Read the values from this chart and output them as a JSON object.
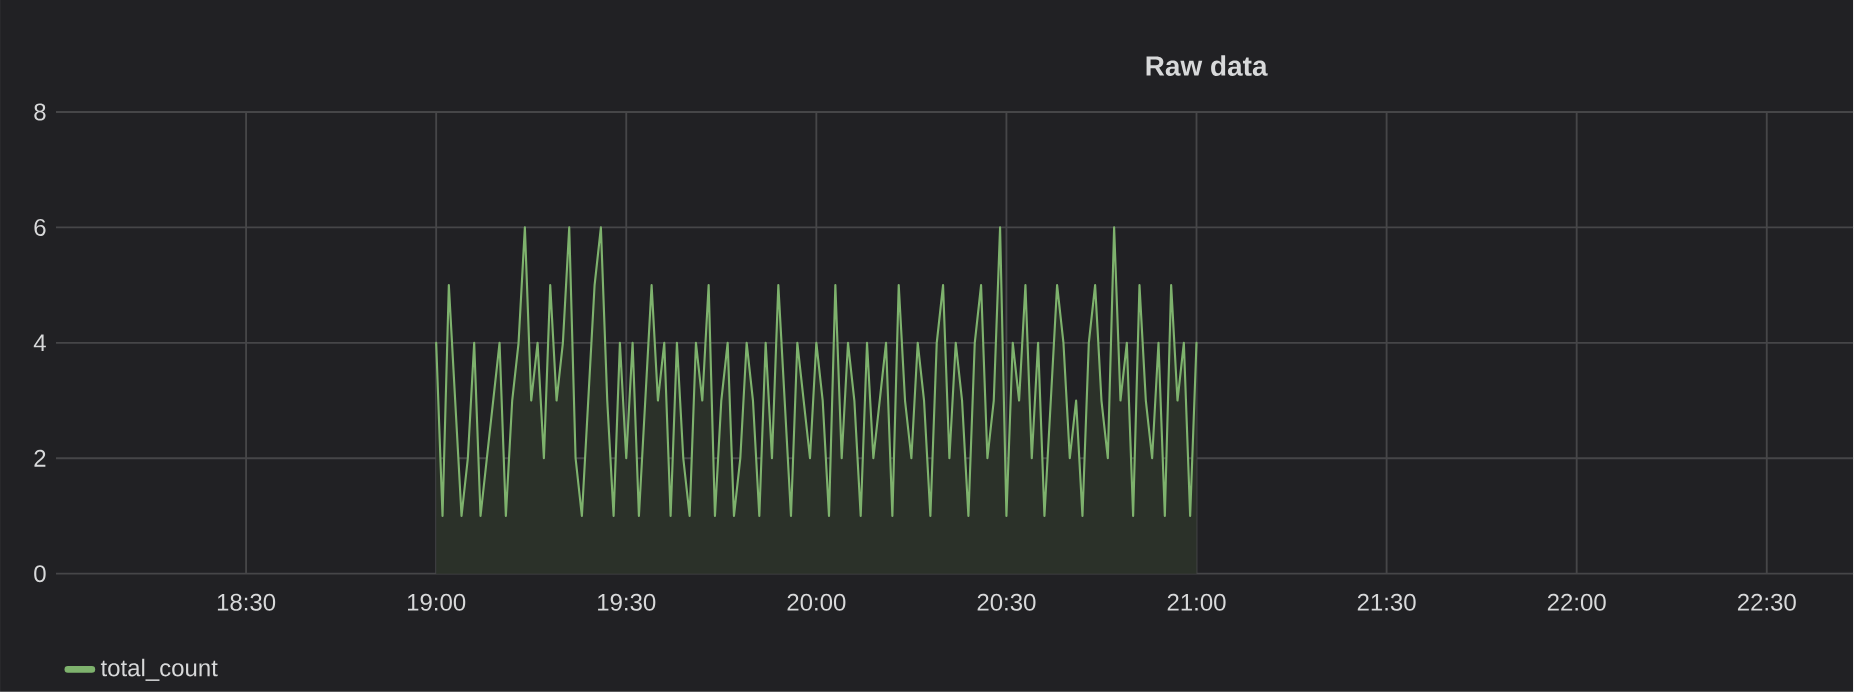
{
  "chart_data": {
    "type": "area",
    "title": "Raw data",
    "x": [
      19.0,
      19.0167,
      19.0333,
      19.05,
      19.0667,
      19.0833,
      19.1,
      19.1167,
      19.1333,
      19.15,
      19.1667,
      19.1833,
      19.2,
      19.2167,
      19.2333,
      19.25,
      19.2667,
      19.2833,
      19.3,
      19.3167,
      19.3333,
      19.35,
      19.3667,
      19.3833,
      19.4,
      19.4167,
      19.4333,
      19.45,
      19.4667,
      19.4833,
      19.5,
      19.5167,
      19.5333,
      19.55,
      19.5667,
      19.5833,
      19.6,
      19.6167,
      19.6333,
      19.65,
      19.6667,
      19.6833,
      19.7,
      19.7167,
      19.7333,
      19.75,
      19.7667,
      19.7833,
      19.8,
      19.8167,
      19.8333,
      19.85,
      19.8667,
      19.8833,
      19.9,
      19.9167,
      19.9333,
      19.95,
      19.9667,
      19.9833,
      20.0,
      20.0167,
      20.0333,
      20.05,
      20.0667,
      20.0833,
      20.1,
      20.1167,
      20.1333,
      20.15,
      20.1667,
      20.1833,
      20.2,
      20.2167,
      20.2333,
      20.25,
      20.2667,
      20.2833,
      20.3,
      20.3167,
      20.3333,
      20.35,
      20.3667,
      20.3833,
      20.4,
      20.4167,
      20.4333,
      20.45,
      20.4667,
      20.4833,
      20.5,
      20.5167,
      20.5333,
      20.55,
      20.5667,
      20.5833,
      20.6,
      20.6167,
      20.6333,
      20.65,
      20.6667,
      20.6833,
      20.7,
      20.7167,
      20.7333,
      20.75,
      20.7667,
      20.7833,
      20.8,
      20.8167,
      20.8333,
      20.85,
      20.8667,
      20.8833,
      20.9,
      20.9167,
      20.9333,
      20.95,
      20.9667,
      20.9833,
      21.0
    ],
    "series": [
      {
        "name": "total_count",
        "color": "#7eb26d",
        "values": [
          4,
          1,
          5,
          3,
          1,
          2,
          4,
          1,
          2,
          3,
          4,
          1,
          3,
          4,
          6,
          3,
          4,
          2,
          5,
          3,
          4,
          6,
          2,
          1,
          3,
          5,
          6,
          3,
          1,
          4,
          2,
          4,
          1,
          3,
          5,
          3,
          4,
          1,
          4,
          2,
          1,
          4,
          3,
          5,
          1,
          3,
          4,
          1,
          2,
          4,
          3,
          1,
          4,
          2,
          5,
          3,
          1,
          4,
          3,
          2,
          4,
          3,
          1,
          5,
          2,
          4,
          3,
          1,
          4,
          2,
          3,
          4,
          1,
          5,
          3,
          2,
          4,
          3,
          1,
          4,
          5,
          2,
          4,
          3,
          1,
          4,
          5,
          2,
          3,
          6,
          1,
          4,
          3,
          5,
          2,
          4,
          1,
          3,
          5,
          4,
          2,
          3,
          1,
          4,
          5,
          3,
          2,
          6,
          3,
          4,
          1,
          5,
          3,
          2,
          4,
          1,
          5,
          3,
          4,
          1,
          4
        ]
      }
    ],
    "xlim": [
      18.0,
      22.727
    ],
    "xticks": [
      {
        "value": 18.5,
        "label": "18:30"
      },
      {
        "value": 19.0,
        "label": "19:00"
      },
      {
        "value": 19.5,
        "label": "19:30"
      },
      {
        "value": 20.0,
        "label": "20:00"
      },
      {
        "value": 20.5,
        "label": "20:30"
      },
      {
        "value": 21.0,
        "label": "21:00"
      },
      {
        "value": 21.5,
        "label": "21:30"
      },
      {
        "value": 22.0,
        "label": "22:00"
      },
      {
        "value": 22.5,
        "label": "22:30"
      }
    ],
    "ylim": [
      0,
      8
    ],
    "yticks": [
      0,
      2,
      4,
      6,
      8
    ],
    "grid": true,
    "legend": "bottom left"
  }
}
